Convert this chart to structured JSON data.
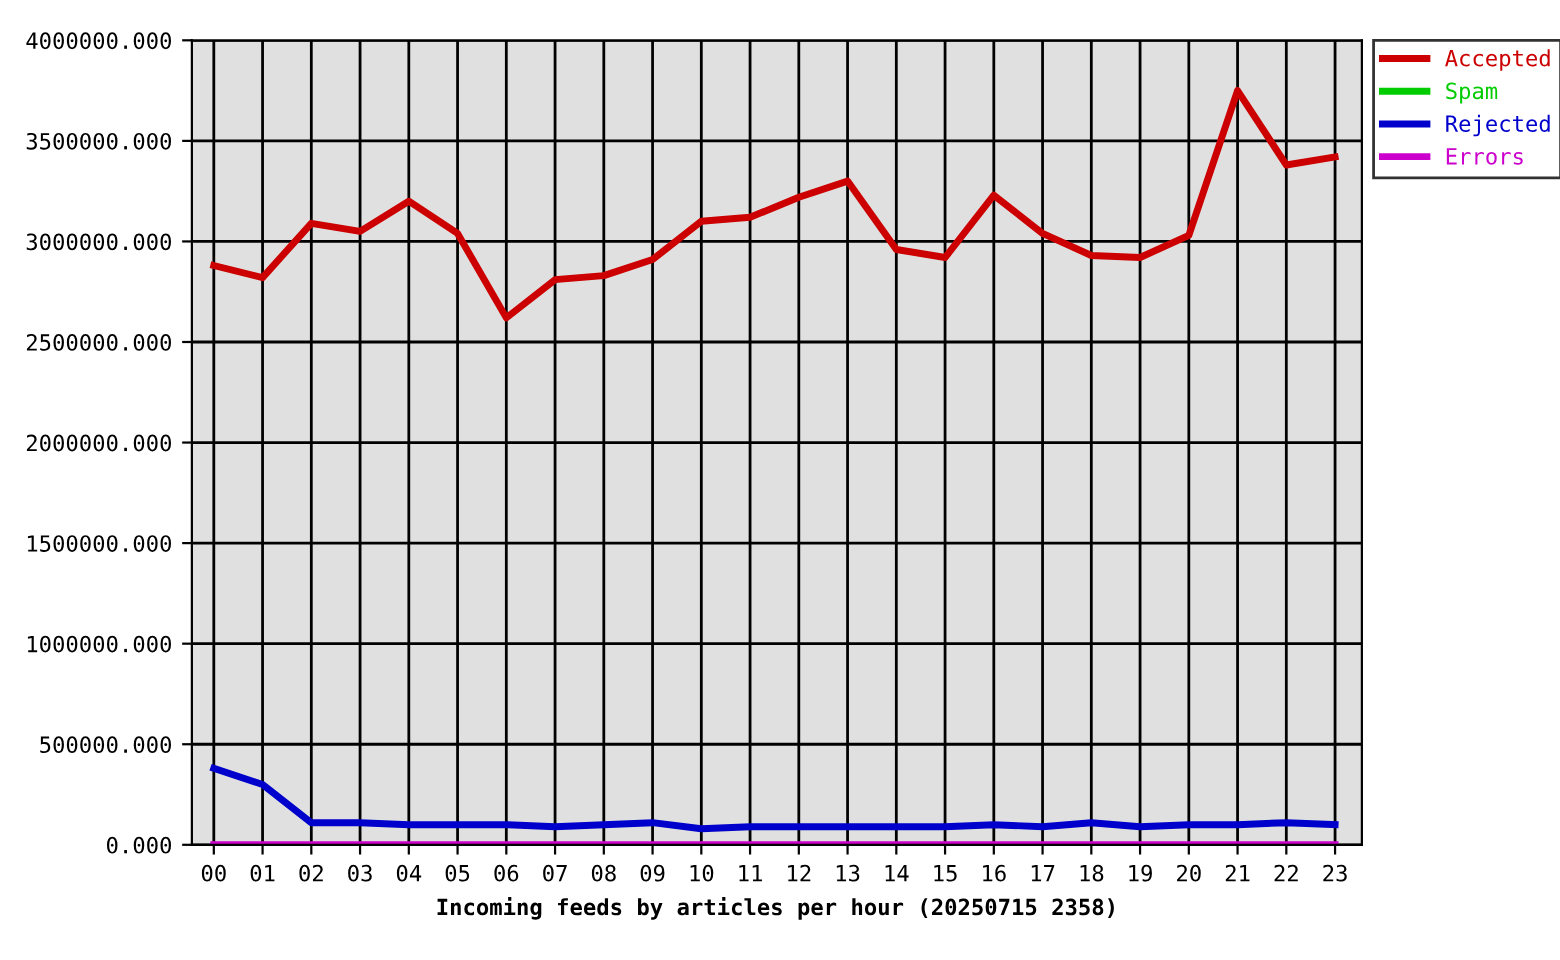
{
  "chart_data": {
    "type": "line",
    "xlabel": "Incoming feeds by articles per hour (20250715 2358)",
    "categories": [
      "00",
      "01",
      "02",
      "03",
      "04",
      "05",
      "06",
      "07",
      "08",
      "09",
      "10",
      "11",
      "12",
      "13",
      "14",
      "15",
      "16",
      "17",
      "18",
      "19",
      "20",
      "21",
      "22",
      "23"
    ],
    "series": [
      {
        "name": "Accepted",
        "color": "#cc0000",
        "values": [
          2880000,
          2820000,
          3090000,
          3050000,
          3200000,
          3040000,
          2620000,
          2810000,
          2830000,
          2910000,
          3100000,
          3120000,
          3220000,
          3300000,
          2960000,
          2920000,
          3230000,
          3040000,
          2930000,
          2920000,
          3030000,
          3750000,
          3380000,
          3420000
        ]
      },
      {
        "name": "Spam",
        "color": "#00cc00",
        "values": [
          null,
          null,
          null,
          null,
          null,
          null,
          null,
          null,
          null,
          null,
          null,
          null,
          null,
          null,
          null,
          null,
          null,
          null,
          null,
          null,
          null,
          null,
          null,
          null
        ]
      },
      {
        "name": "Rejected",
        "color": "#0000cc",
        "values": [
          380000,
          300000,
          110000,
          110000,
          100000,
          100000,
          100000,
          90000,
          100000,
          110000,
          80000,
          90000,
          90000,
          90000,
          90000,
          90000,
          100000,
          90000,
          110000,
          90000,
          100000,
          100000,
          110000,
          100000
        ]
      },
      {
        "name": "Errors",
        "color": "#cc00cc",
        "values": [
          0,
          0,
          0,
          0,
          0,
          0,
          0,
          0,
          0,
          0,
          0,
          0,
          0,
          0,
          0,
          0,
          0,
          0,
          0,
          0,
          0,
          0,
          0,
          0
        ]
      }
    ],
    "ylim": [
      0,
      4000000
    ],
    "yticks": [
      {
        "value": 0,
        "label": "0.000"
      },
      {
        "value": 500000,
        "label": "500000.000"
      },
      {
        "value": 1000000,
        "label": "1000000.000"
      },
      {
        "value": 1500000,
        "label": "1500000.000"
      },
      {
        "value": 2000000,
        "label": "2000000.000"
      },
      {
        "value": 2500000,
        "label": "2500000.000"
      },
      {
        "value": 3000000,
        "label": "3000000.000"
      },
      {
        "value": 3500000,
        "label": "3500000.000"
      },
      {
        "value": 4000000,
        "label": "4000000.000"
      }
    ],
    "grid": true,
    "legend": "top right",
    "line_style": "solid"
  }
}
